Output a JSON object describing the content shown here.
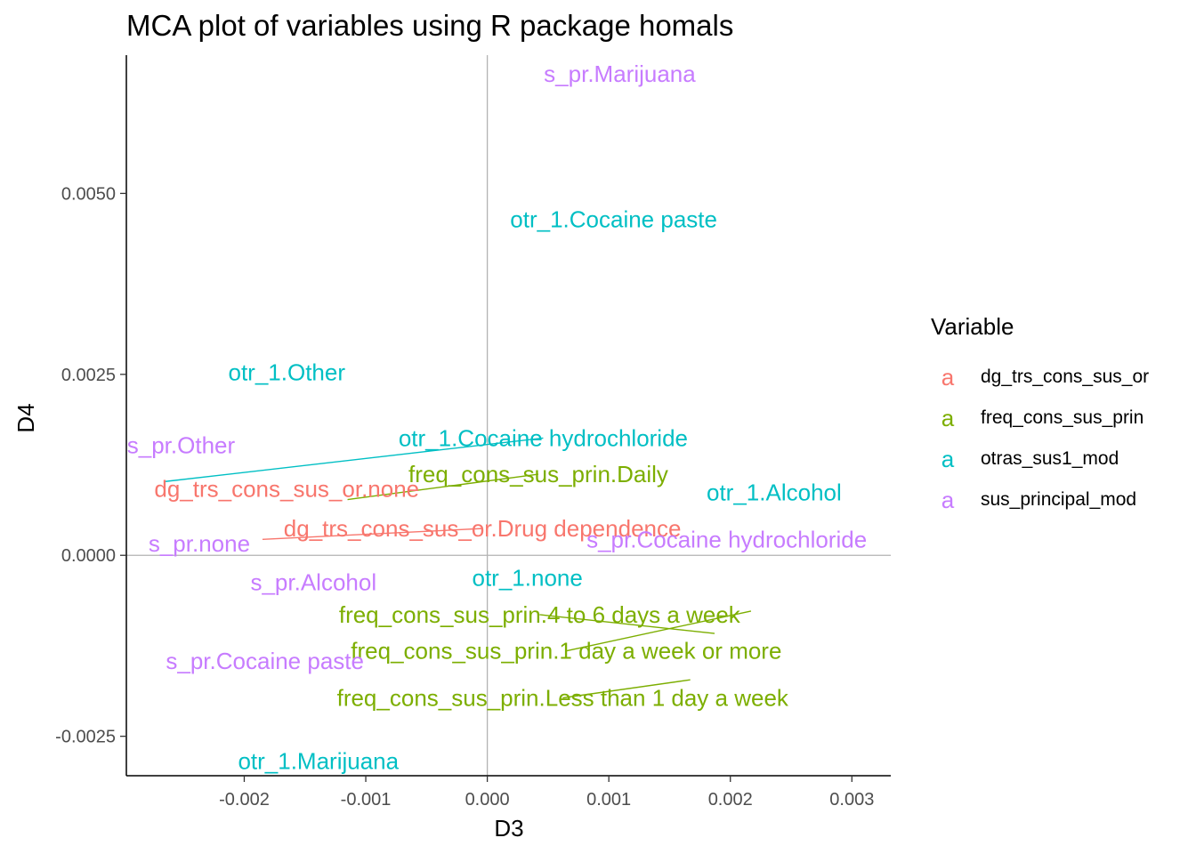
{
  "chart_data": {
    "type": "scatter",
    "title": "MCA plot of variables using R package homals",
    "xlabel": "D3",
    "ylabel": "D4",
    "xlim": [
      -0.00297,
      0.00332
    ],
    "ylim": [
      -0.003045,
      0.00691
    ],
    "x_ticks": [
      -0.002,
      -0.001,
      0.0,
      0.001,
      0.002,
      0.003
    ],
    "x_tick_labels": [
      "-0.002",
      "-0.001",
      "0.000",
      "0.001",
      "0.002",
      "0.003"
    ],
    "y_ticks": [
      -0.0025,
      0.0,
      0.0025,
      0.005
    ],
    "y_tick_labels": [
      "-0.0025",
      "0.0000",
      "0.0025",
      "0.0050"
    ],
    "reference_lines": {
      "x": 0,
      "y": 0
    },
    "grid": false,
    "legend": {
      "title": "Variable",
      "placement": "right",
      "key_glyph": "a",
      "entries": [
        {
          "name": "dg_trs_cons_sus_or",
          "color": "#F8766D"
        },
        {
          "name": "freq_cons_sus_prin",
          "color": "#7CAE00"
        },
        {
          "name": "otras_sus1_mod",
          "color": "#00BFC4"
        },
        {
          "name": "sus_principal_mod",
          "color": "#C77CFF"
        }
      ]
    },
    "points": [
      {
        "label": "s_pr.Marijuana",
        "group": "sus_principal_mod",
        "x": 0.00109,
        "y": 0.00665,
        "lx": 0.00109,
        "ly": 0.00665
      },
      {
        "label": "otr_1.Cocaine paste",
        "group": "otras_sus1_mod",
        "x": 0.00104,
        "y": 0.00464,
        "lx": 0.00104,
        "ly": 0.00464
      },
      {
        "label": "otr_1.Other",
        "group": "otras_sus1_mod",
        "x": -0.00165,
        "y": 0.00253,
        "lx": -0.00165,
        "ly": 0.00253
      },
      {
        "label": "otr_1.Cocaine hydrochloride",
        "group": "otras_sus1_mod",
        "x": -0.00265,
        "y": 0.00102,
        "lx": 0.00046,
        "ly": 0.00162
      },
      {
        "label": "s_pr.Other",
        "group": "sus_principal_mod",
        "x": -0.00252,
        "y": 0.00152,
        "lx": -0.00252,
        "ly": 0.00152
      },
      {
        "label": "freq_cons_sus_prin.Daily",
        "group": "freq_cons_sus_prin",
        "x": -0.00115,
        "y": 0.00077,
        "lx": 0.00042,
        "ly": 0.00112
      },
      {
        "label": "dg_trs_cons_sus_or.none",
        "group": "dg_trs_cons_sus_or",
        "x": -0.00165,
        "y": 0.00092,
        "lx": -0.00165,
        "ly": 0.00092
      },
      {
        "label": "otr_1.Alcohol",
        "group": "otras_sus1_mod",
        "x": 0.00236,
        "y": 0.00087,
        "lx": 0.00236,
        "ly": 0.00087
      },
      {
        "label": "dg_trs_cons_sus_or.Drug dependence",
        "group": "dg_trs_cons_sus_or",
        "x": -0.00185,
        "y": 0.00022,
        "lx": -4e-05,
        "ly": 0.00037
      },
      {
        "label": "s_pr.Cocaine hydrochloride",
        "group": "sus_principal_mod",
        "x": 0.00197,
        "y": 0.00022,
        "lx": 0.00197,
        "ly": 0.00022
      },
      {
        "label": "s_pr.none",
        "group": "sus_principal_mod",
        "x": -0.00237,
        "y": 0.00016,
        "lx": -0.00237,
        "ly": 0.00016
      },
      {
        "label": "otr_1.none",
        "group": "otras_sus1_mod",
        "x": 0.00033,
        "y": -0.00031,
        "lx": 0.00033,
        "ly": -0.00031
      },
      {
        "label": "s_pr.Alcohol",
        "group": "sus_principal_mod",
        "x": -0.00143,
        "y": -0.00037,
        "lx": -0.00143,
        "ly": -0.00037
      },
      {
        "label": "freq_cons_sus_prin.4 to 6 days a week",
        "group": "freq_cons_sus_prin",
        "x": 0.00187,
        "y": -0.00108,
        "lx": 0.00043,
        "ly": -0.00082
      },
      {
        "label": "freq_cons_sus_prin.1 day a week or more",
        "group": "freq_cons_sus_prin",
        "x": 0.00217,
        "y": -0.00077,
        "lx": 0.00065,
        "ly": -0.00132
      },
      {
        "label": "freq_cons_sus_prin.Less than 1 day a week",
        "group": "freq_cons_sus_prin",
        "x": 0.00167,
        "y": -0.00172,
        "lx": 0.00062,
        "ly": -0.00197
      },
      {
        "label": "s_pr.Cocaine paste",
        "group": "sus_principal_mod",
        "x": -0.00183,
        "y": -0.00146,
        "lx": -0.00183,
        "ly": -0.00146
      },
      {
        "label": "otr_1.Marijuana",
        "group": "otras_sus1_mod",
        "x": -0.00139,
        "y": -0.00284,
        "lx": -0.00139,
        "ly": -0.00284
      }
    ]
  }
}
